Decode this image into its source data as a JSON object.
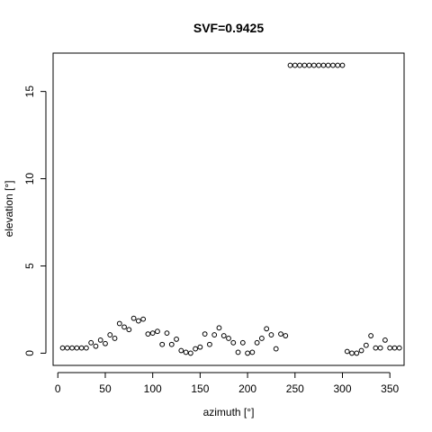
{
  "chart_data": {
    "type": "scatter",
    "title": "SVF=0.9425",
    "xlabel": "azimuth [°]",
    "ylabel": "elevation [°]",
    "xlim": [
      -5,
      365
    ],
    "ylim": [
      -0.7,
      17.2
    ],
    "xticks": [
      0,
      50,
      100,
      150,
      200,
      250,
      300,
      350
    ],
    "yticks": [
      0,
      5,
      10,
      15
    ],
    "grid": false,
    "marker": "open-circle",
    "colors": {
      "point_stroke": "#000000",
      "axis": "#000000"
    },
    "series": [
      {
        "x": [
          5,
          10,
          15,
          20,
          25,
          30,
          35,
          40,
          45,
          50,
          55,
          60,
          65,
          70,
          75,
          80,
          85,
          90,
          95,
          100,
          105,
          110,
          115,
          120,
          125,
          130,
          135,
          140,
          145,
          150,
          155,
          160,
          165,
          170,
          175,
          180,
          185,
          190,
          195,
          200,
          205,
          210,
          215,
          220,
          225,
          230,
          235,
          240,
          245,
          250,
          255,
          260,
          265,
          270,
          275,
          280,
          285,
          290,
          295,
          300,
          305,
          310,
          315,
          320,
          325,
          330,
          335,
          340,
          345,
          350,
          355,
          360
        ],
        "y": [
          0.3,
          0.3,
          0.3,
          0.3,
          0.3,
          0.3,
          0.6,
          0.4,
          0.75,
          0.55,
          1.05,
          0.85,
          1.7,
          1.5,
          1.35,
          2.0,
          1.85,
          1.95,
          1.1,
          1.15,
          1.25,
          0.5,
          1.15,
          0.5,
          0.8,
          0.15,
          0.05,
          0.0,
          0.25,
          0.35,
          1.1,
          0.5,
          1.05,
          1.45,
          1.0,
          0.85,
          0.6,
          0.05,
          0.6,
          0.0,
          0.05,
          0.6,
          0.85,
          1.4,
          1.05,
          0.25,
          1.1,
          1.0,
          16.5,
          16.5,
          16.5,
          16.5,
          16.5,
          16.5,
          16.5,
          16.5,
          16.5,
          16.5,
          16.5,
          16.5,
          0.1,
          0.0,
          0.0,
          0.15,
          0.45,
          1.0,
          0.3,
          0.3,
          0.75,
          0.3,
          0.3,
          0.3
        ]
      }
    ]
  }
}
